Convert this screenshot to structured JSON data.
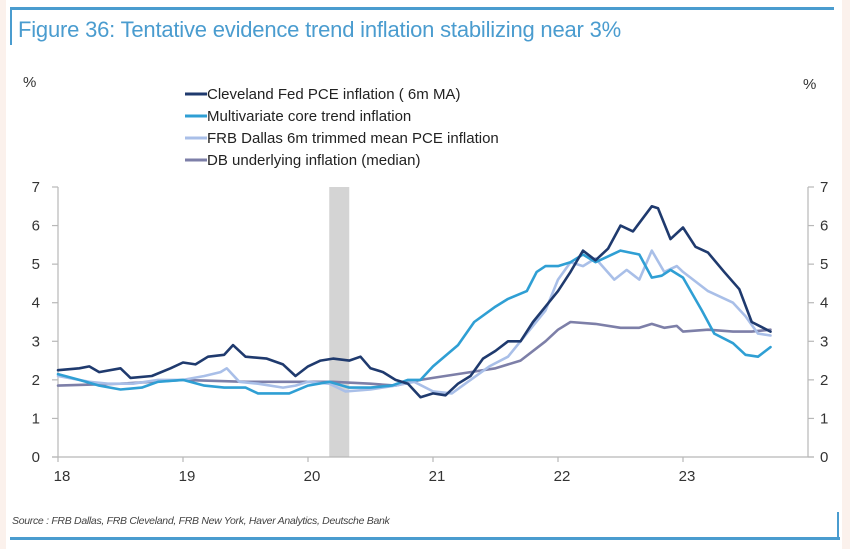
{
  "figure": {
    "title": "Figure 36: Tentative evidence trend inflation stabilizing near 3%",
    "unit_left": "%",
    "unit_right": "%",
    "source": "Source : FRB Dallas, FRB Cleveland, FRB New York, Haver Analytics, Deutsche Bank",
    "frame_color": "#4a9ccf"
  },
  "chart_data": {
    "type": "line",
    "title": "Figure 36: Tentative evidence trend inflation stabilizing near 3%",
    "xlabel": "",
    "ylabel": "%",
    "ylabel_right": "%",
    "xlim": [
      2018,
      2024
    ],
    "ylim": [
      0,
      7
    ],
    "x_ticks": [
      2018,
      2019,
      2020,
      2021,
      2022,
      2023
    ],
    "x_tick_labels": [
      "18",
      "19",
      "20",
      "21",
      "22",
      "23"
    ],
    "y_ticks": [
      0,
      1,
      2,
      3,
      4,
      5,
      6,
      7
    ],
    "y_tick_labels": [
      "0",
      "1",
      "2",
      "3",
      "4",
      "5",
      "6",
      "7"
    ],
    "grid": false,
    "legend_position": "top-left",
    "shaded_region": {
      "x_start": 2020.17,
      "x_end": 2020.33,
      "color": "#d4d4d4",
      "meaning": "recession"
    },
    "series": [
      {
        "name": "Cleveland Fed PCE inflation ( 6m MA)",
        "color": "#1f3a6e",
        "x": [
          2018.0,
          2018.17,
          2018.25,
          2018.33,
          2018.5,
          2018.58,
          2018.75,
          2018.9,
          2019.0,
          2019.1,
          2019.2,
          2019.33,
          2019.4,
          2019.5,
          2019.67,
          2019.8,
          2019.9,
          2020.0,
          2020.1,
          2020.2,
          2020.33,
          2020.42,
          2020.5,
          2020.6,
          2020.7,
          2020.8,
          2020.9,
          2021.0,
          2021.1,
          2021.2,
          2021.3,
          2021.4,
          2021.5,
          2021.6,
          2021.7,
          2021.8,
          2021.9,
          2022.0,
          2022.1,
          2022.2,
          2022.3,
          2022.4,
          2022.5,
          2022.6,
          2022.75,
          2022.8,
          2022.9,
          2023.0,
          2023.1,
          2023.2,
          2023.33,
          2023.45,
          2023.55,
          2023.7
        ],
        "values": [
          2.25,
          2.3,
          2.35,
          2.2,
          2.3,
          2.05,
          2.1,
          2.3,
          2.45,
          2.4,
          2.6,
          2.65,
          2.9,
          2.6,
          2.55,
          2.4,
          2.1,
          2.35,
          2.5,
          2.55,
          2.5,
          2.6,
          2.3,
          2.2,
          2.0,
          1.9,
          1.55,
          1.65,
          1.6,
          1.9,
          2.1,
          2.55,
          2.75,
          3.0,
          3.0,
          3.5,
          3.9,
          4.3,
          4.8,
          5.35,
          5.1,
          5.4,
          6.0,
          5.85,
          6.5,
          6.45,
          5.65,
          5.95,
          5.45,
          5.3,
          4.8,
          4.35,
          3.5,
          3.25
        ]
      },
      {
        "name": "Multivariate core trend inflation",
        "color": "#2f9fd4",
        "x": [
          2018.0,
          2018.17,
          2018.33,
          2018.5,
          2018.67,
          2018.8,
          2019.0,
          2019.17,
          2019.33,
          2019.5,
          2019.6,
          2019.75,
          2019.85,
          2020.0,
          2020.17,
          2020.33,
          2020.5,
          2020.67,
          2020.8,
          2020.9,
          2021.0,
          2021.2,
          2021.33,
          2021.5,
          2021.6,
          2021.75,
          2021.83,
          2021.9,
          2022.0,
          2022.1,
          2022.2,
          2022.3,
          2022.4,
          2022.5,
          2022.65,
          2022.75,
          2022.83,
          2022.9,
          2023.0,
          2023.15,
          2023.25,
          2023.4,
          2023.5,
          2023.6,
          2023.7
        ],
        "values": [
          2.15,
          2.0,
          1.85,
          1.75,
          1.8,
          1.95,
          2.0,
          1.85,
          1.8,
          1.8,
          1.65,
          1.65,
          1.65,
          1.85,
          1.95,
          1.8,
          1.8,
          1.85,
          2.0,
          2.0,
          2.35,
          2.9,
          3.5,
          3.9,
          4.1,
          4.3,
          4.8,
          4.95,
          4.95,
          5.05,
          5.25,
          5.05,
          5.2,
          5.35,
          5.25,
          4.65,
          4.7,
          4.85,
          4.65,
          3.8,
          3.2,
          2.95,
          2.65,
          2.6,
          2.85
        ]
      },
      {
        "name": "FRB Dallas 6m trimmed mean PCE inflation",
        "color": "#a9bfe8",
        "x": [
          2018.0,
          2018.25,
          2018.4,
          2018.6,
          2018.8,
          2019.0,
          2019.17,
          2019.3,
          2019.35,
          2019.45,
          2019.6,
          2019.8,
          2019.9,
          2020.0,
          2020.17,
          2020.3,
          2020.5,
          2020.7,
          2020.85,
          2021.0,
          2021.15,
          2021.3,
          2021.45,
          2021.6,
          2021.75,
          2021.9,
          2022.0,
          2022.1,
          2022.2,
          2022.3,
          2022.45,
          2022.55,
          2022.65,
          2022.75,
          2022.85,
          2022.95,
          2023.0,
          2023.2,
          2023.4,
          2023.5,
          2023.6,
          2023.7
        ],
        "values": [
          2.1,
          1.95,
          1.9,
          1.9,
          2.0,
          2.0,
          2.1,
          2.2,
          2.3,
          1.95,
          1.9,
          1.8,
          1.85,
          1.95,
          1.9,
          1.7,
          1.75,
          1.85,
          1.95,
          1.7,
          1.65,
          2.0,
          2.35,
          2.6,
          3.2,
          3.8,
          4.6,
          5.05,
          4.95,
          5.15,
          4.6,
          4.85,
          4.6,
          5.35,
          4.8,
          4.95,
          4.8,
          4.3,
          4.0,
          3.65,
          3.2,
          3.15
        ]
      },
      {
        "name": "DB underlying inflation (median)",
        "color": "#7d7fa8",
        "x": [
          2018.0,
          2018.5,
          2019.0,
          2019.5,
          2020.0,
          2020.2,
          2020.5,
          2020.7,
          2020.9,
          2021.0,
          2021.3,
          2021.5,
          2021.7,
          2021.9,
          2022.0,
          2022.1,
          2022.3,
          2022.5,
          2022.65,
          2022.75,
          2022.85,
          2022.95,
          2023.0,
          2023.2,
          2023.4,
          2023.55,
          2023.7
        ],
        "values": [
          1.85,
          1.9,
          2.0,
          1.95,
          1.95,
          1.95,
          1.9,
          1.85,
          2.0,
          2.05,
          2.2,
          2.3,
          2.5,
          3.0,
          3.3,
          3.5,
          3.45,
          3.35,
          3.35,
          3.45,
          3.35,
          3.4,
          3.25,
          3.3,
          3.25,
          3.25,
          3.3
        ]
      }
    ]
  }
}
